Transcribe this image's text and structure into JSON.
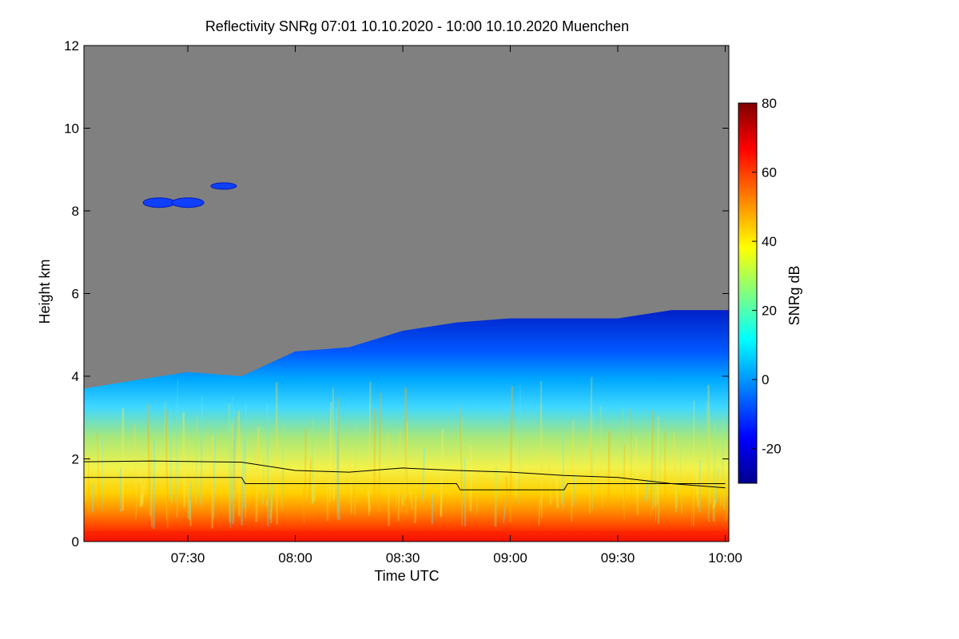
{
  "chart_data": {
    "type": "heatmap",
    "title": "Reflectivity SNRg   07:01 10.10.2020 - 10:00 10.10.2020 Muenchen",
    "xlabel": "Time UTC",
    "ylabel": "Height km",
    "xlim": [
      "07:01",
      "10:01"
    ],
    "ylim": [
      0,
      12
    ],
    "x_ticks": [
      "07:30",
      "08:00",
      "08:30",
      "09:00",
      "09:30",
      "10:00"
    ],
    "y_ticks": [
      0,
      2,
      4,
      6,
      8,
      10,
      12
    ],
    "colorbar": {
      "label": "SNRg dB",
      "range": [
        -30,
        80
      ],
      "ticks": [
        -20,
        0,
        20,
        40,
        60,
        80
      ],
      "colormap": "rainbow (dark blue to dark red)"
    },
    "background_color": "#808080",
    "signal_top_km": {
      "time": [
        "07:01",
        "07:15",
        "07:30",
        "07:45",
        "08:00",
        "08:15",
        "08:30",
        "08:45",
        "09:00",
        "09:15",
        "09:30",
        "09:45",
        "10:00"
      ],
      "height": [
        3.7,
        3.9,
        4.1,
        4.0,
        4.6,
        4.7,
        5.1,
        5.3,
        5.4,
        5.4,
        5.4,
        5.6,
        5.6
      ]
    },
    "series": [
      {
        "name": "upper black line",
        "x": [
          "07:01",
          "07:20",
          "07:45",
          "08:00",
          "08:15",
          "08:30",
          "08:45",
          "09:00",
          "09:15",
          "09:30",
          "09:45",
          "10:00"
        ],
        "values": [
          1.93,
          1.95,
          1.92,
          1.72,
          1.68,
          1.78,
          1.72,
          1.68,
          1.6,
          1.55,
          1.4,
          1.3
        ]
      },
      {
        "name": "lower black line",
        "x": [
          "07:01",
          "07:45",
          "07:46",
          "08:45",
          "08:46",
          "09:15",
          "09:16",
          "10:00"
        ],
        "values": [
          1.55,
          1.55,
          1.4,
          1.4,
          1.25,
          1.25,
          1.4,
          1.4
        ]
      }
    ],
    "clouds_upper": [
      {
        "time": "07:22",
        "height_km": 8.2
      },
      {
        "time": "07:30",
        "height_km": 8.2
      },
      {
        "time": "07:40",
        "height_km": 8.6
      }
    ]
  }
}
